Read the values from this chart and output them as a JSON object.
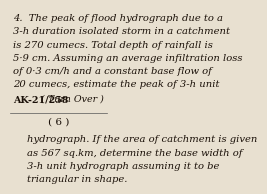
{
  "bg_color": "#e8e0d0",
  "lines_top": [
    "4.  The peak of flood hydrograph due to a",
    "3-h duration isolated storm in a catchment",
    "is 270 cumecs. Total depth of rainfall is",
    "5·9 cm. Assuming an average infiltration loss",
    "of 0·3 cm/h and a constant base flow of",
    "20 cumecs, estimate the peak of 3-h unit"
  ],
  "footer_left": "AK-21/258",
  "footer_right": "( Turn Over )",
  "page_number": "( 6 )",
  "lines_bottom": [
    "hydrograph. If the area of catchment is given",
    "as 567 sq.km, determine the base width of",
    "3-h unit hydrograph assuming it to be",
    "triangular in shape."
  ],
  "font_size_main": 7.2,
  "font_size_footer": 6.8,
  "font_size_page": 7.5,
  "text_color": "#1a1008",
  "divider_color": "#555555"
}
